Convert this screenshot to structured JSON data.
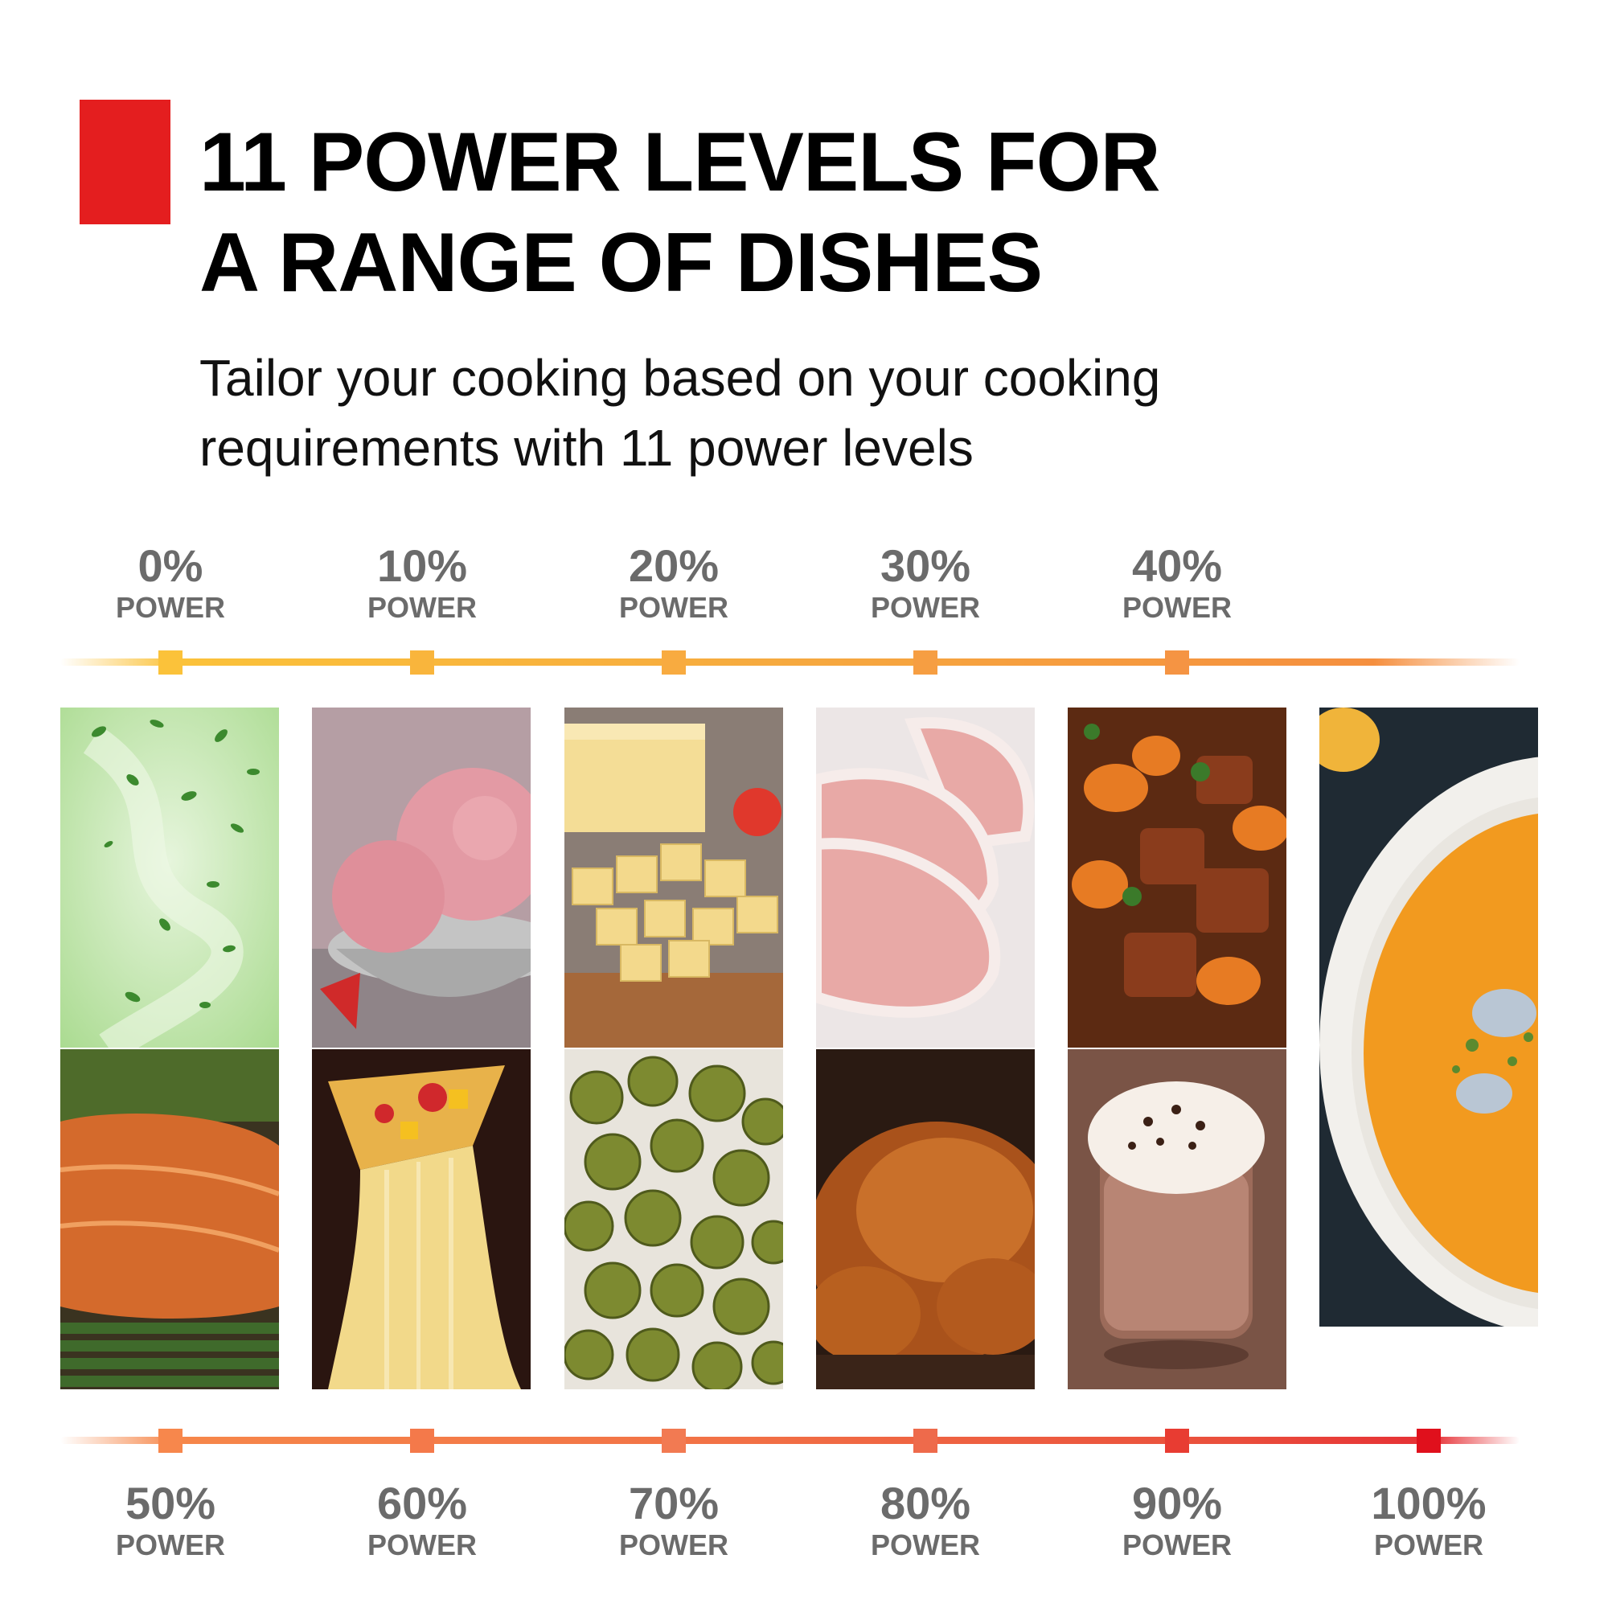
{
  "title": {
    "line1": "11 POWER LEVELS FOR",
    "line2": "A RANGE OF DISHES"
  },
  "subtitle": {
    "line1": "Tailor your cooking based on your cooking",
    "line2": "requirements with 11 power levels"
  },
  "top_levels": [
    {
      "percent": "0%",
      "label": "POWER"
    },
    {
      "percent": "10%",
      "label": "POWER"
    },
    {
      "percent": "20%",
      "label": "POWER"
    },
    {
      "percent": "30%",
      "label": "POWER"
    },
    {
      "percent": "40%",
      "label": "POWER"
    }
  ],
  "bottom_levels": [
    {
      "percent": "50%",
      "label": "POWER"
    },
    {
      "percent": "60%",
      "label": "POWER"
    },
    {
      "percent": "70%",
      "label": "POWER"
    },
    {
      "percent": "80%",
      "label": "POWER"
    },
    {
      "percent": "90%",
      "label": "POWER"
    },
    {
      "percent": "100%",
      "label": "POWER"
    }
  ],
  "colors": {
    "accent": "#e41e1f",
    "label_gray": "#6b6b6b",
    "top_markers": [
      "#fbc23a",
      "#f9b53c",
      "#f8ab40",
      "#f69e42",
      "#f59443"
    ],
    "bottom_markers": [
      "#f7874c",
      "#f4794a",
      "#f27a52",
      "#ee6a4b",
      "#e83c32",
      "#e0101c"
    ]
  },
  "food_images": [
    "green-leaves-swirl",
    "pink-ice-cream",
    "cheese-cubes",
    "raw-pork-chops",
    "beef-stew",
    "pumpkin-soup",
    "grilled-salmon",
    "cheesy-pizza-slice",
    "roasted-brussels-sprouts",
    "roast-chicken",
    "hot-chocolate"
  ]
}
